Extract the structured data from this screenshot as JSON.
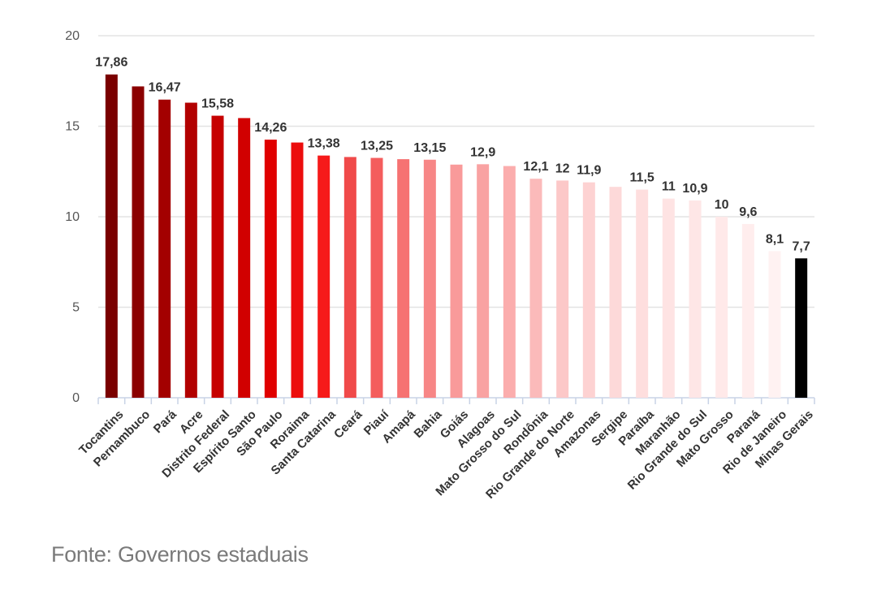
{
  "source": "Fonte: Governos estaduais",
  "chart_data": {
    "type": "bar",
    "title": "",
    "xlabel": "",
    "ylabel": "",
    "ylim": [
      0,
      20
    ],
    "yticks": [
      0,
      5,
      10,
      15,
      20
    ],
    "grid": true,
    "categories": [
      "Tocantins",
      "Pernambuco",
      "Pará",
      "Acre",
      "Distrito Federal",
      "Espírito Santo",
      "São Paulo",
      "Roraima",
      "Santa Catarina",
      "Ceará",
      "Piauí",
      "Amapá",
      "Bahia",
      "Goiás",
      "Alagoas",
      "Mato Grosso do Sul",
      "Rondônia",
      "Rio Grande do Norte",
      "Amazonas",
      "Sergipe",
      "Paraíba",
      "Maranhão",
      "Rio Grande do Sul",
      "Mato Grosso",
      "Paraná",
      "Rio de Janeiro",
      "Minas Gerais"
    ],
    "values": [
      17.86,
      17.2,
      16.47,
      16.3,
      15.58,
      15.45,
      14.26,
      14.1,
      13.38,
      13.3,
      13.25,
      13.18,
      13.15,
      12.88,
      12.9,
      12.8,
      12.1,
      12,
      11.9,
      11.65,
      11.5,
      11,
      10.9,
      10,
      9.6,
      8.1,
      7.7
    ],
    "data_labels": [
      "17,86",
      "",
      "16,47",
      "",
      "15,58",
      "",
      "14,26",
      "",
      "13,38",
      "",
      "13,25",
      "",
      "13,15",
      "",
      "12,9",
      "",
      "12,1",
      "12",
      "11,9",
      "",
      "11,5",
      "11",
      "10,9",
      "10",
      "9,6",
      "8,1",
      "7,7"
    ],
    "colors": [
      "#7a0000",
      "#8b0000",
      "#a30000",
      "#b20000",
      "#c60000",
      "#d10000",
      "#e00000",
      "#ec0d0d",
      "#f61a1a",
      "#f04a4a",
      "#f45d5d",
      "#f67272",
      "#f78686",
      "#f99a9a",
      "#f9a2a2",
      "#fbadad",
      "#fbbaba",
      "#fcc8c8",
      "#fdd2d2",
      "#fdd9d9",
      "#fedede",
      "#fee3e3",
      "#fee6e6",
      "#ffe9e9",
      "#ffeded",
      "#fff2f2",
      "#000000"
    ]
  }
}
